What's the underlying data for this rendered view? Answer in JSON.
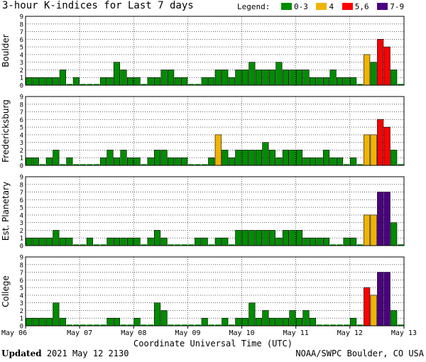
{
  "title": "3-hour K-indices for Last 7 days",
  "legend": {
    "label": "Legend:",
    "items": [
      {
        "label": "0-3",
        "color": "#008c00"
      },
      {
        "label": "4",
        "color": "#f0b400"
      },
      {
        "label": "5,6",
        "color": "#ff0000"
      },
      {
        "label": "7-9",
        "color": "#4b0082"
      }
    ]
  },
  "footer": {
    "updated_label": "Updated",
    "updated_value": "2021 May 12 2130",
    "credit": "NOAA/SWPC Boulder, CO USA"
  },
  "chart_data": {
    "type": "bar",
    "xlabel": "Coordinate Universal Time (UTC)",
    "x_ticks": [
      "May 06",
      "May 07",
      "May 08",
      "May 09",
      "May 10",
      "May 11",
      "May 12",
      "May 13"
    ],
    "ylim": [
      0,
      9
    ],
    "y_ticks": [
      "0",
      "1",
      "2",
      "3",
      "4",
      "5",
      "6",
      "7",
      "8",
      "9"
    ],
    "bins_per_day": 8,
    "grid": true,
    "series": [
      {
        "name": "Boulder",
        "values": [
          1,
          1,
          1,
          1,
          1,
          2,
          0,
          1,
          0,
          0,
          0,
          1,
          1,
          3,
          2,
          1,
          1,
          0,
          1,
          1,
          2,
          2,
          1,
          1,
          0,
          0,
          1,
          1,
          2,
          2,
          1,
          2,
          2,
          3,
          2,
          2,
          2,
          3,
          2,
          2,
          2,
          2,
          1,
          1,
          1,
          2,
          1,
          1,
          1,
          0,
          4,
          3,
          6,
          5,
          2,
          0
        ]
      },
      {
        "name": "Fredericksburg",
        "values": [
          1,
          1,
          0,
          1,
          2,
          0,
          1,
          0,
          0,
          0,
          0,
          1,
          2,
          1,
          2,
          1,
          1,
          0,
          1,
          2,
          2,
          1,
          1,
          1,
          0,
          0,
          0,
          1,
          4,
          2,
          1,
          2,
          2,
          2,
          2,
          3,
          2,
          1,
          2,
          2,
          2,
          1,
          1,
          1,
          2,
          1,
          1,
          0,
          1,
          0,
          4,
          4,
          6,
          5,
          2,
          0
        ]
      },
      {
        "name": "Est. Planetary",
        "values": [
          1,
          1,
          1,
          1,
          2,
          1,
          1,
          0,
          0,
          1,
          0,
          0,
          1,
          1,
          1,
          1,
          1,
          0,
          1,
          2,
          1,
          0,
          0,
          0,
          0,
          1,
          1,
          0,
          1,
          1,
          0,
          2,
          2,
          2,
          2,
          2,
          2,
          1,
          2,
          2,
          2,
          1,
          1,
          1,
          1,
          0,
          0,
          1,
          1,
          0,
          4,
          4,
          7,
          7,
          3,
          0
        ]
      },
      {
        "name": "College",
        "values": [
          1,
          1,
          1,
          1,
          3,
          1,
          0,
          0,
          0,
          0,
          0,
          0,
          1,
          1,
          0,
          0,
          1,
          0,
          0,
          3,
          2,
          0,
          0,
          0,
          0,
          0,
          1,
          0,
          0,
          1,
          0,
          1,
          1,
          3,
          1,
          2,
          1,
          1,
          1,
          2,
          1,
          2,
          1,
          0,
          0,
          0,
          0,
          0,
          1,
          0,
          5,
          4,
          7,
          7,
          2,
          0
        ]
      }
    ]
  }
}
